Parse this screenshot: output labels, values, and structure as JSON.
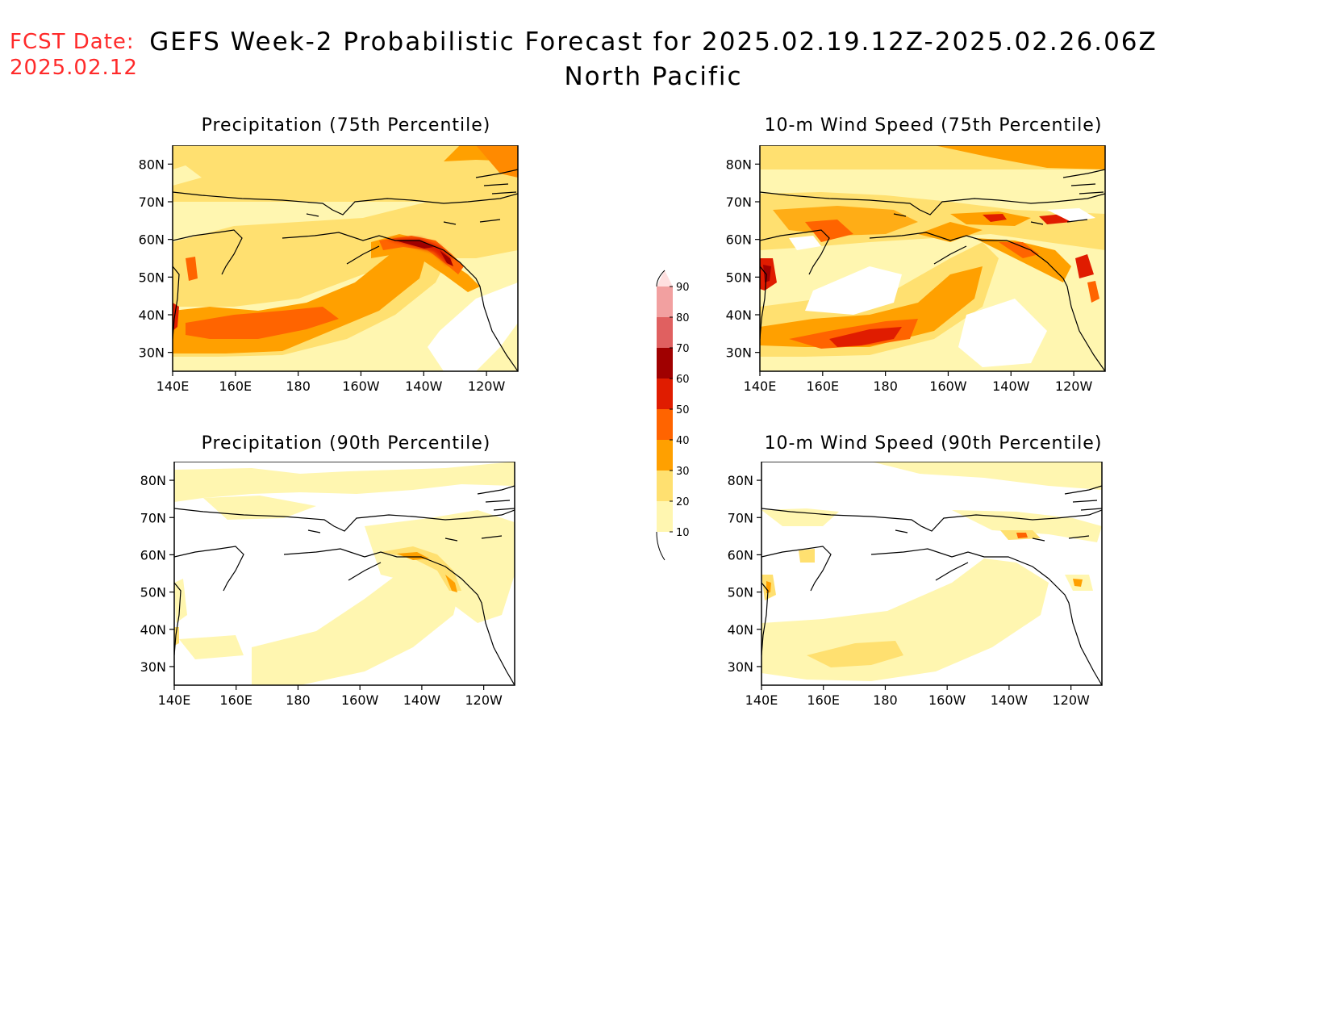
{
  "forecast_date": {
    "label": "FCST Date:",
    "value": "2025.02.12"
  },
  "title": {
    "line1": "GEFS Week-2 Probabilistic Forecast for 2025.02.19.12Z-2025.02.26.06Z",
    "line2": "North Pacific"
  },
  "axes": {
    "lat_labels": [
      "80N",
      "70N",
      "60N",
      "50N",
      "40N",
      "30N"
    ],
    "lon_labels": [
      "140E",
      "160E",
      "180",
      "160W",
      "140W",
      "120W"
    ]
  },
  "panels": [
    {
      "id": "precip75",
      "title": "Precipitation (75th Percentile)"
    },
    {
      "id": "wind75",
      "title": "10-m Wind Speed (75th Percentile)"
    },
    {
      "id": "precip90",
      "title": "Precipitation (90th Percentile)"
    },
    {
      "id": "wind90",
      "title": "10-m Wind Speed (90th Percentile)"
    }
  ],
  "colorbar": {
    "labels": [
      "90",
      "80",
      "70",
      "60",
      "50",
      "40",
      "30",
      "20",
      "10"
    ],
    "colors": [
      "#ffe0e0",
      "#f2a0a0",
      "#e06060",
      "#a00000",
      "#e01c00",
      "#ff6400",
      "#ffa000",
      "#ffe070",
      "#fff6b0"
    ]
  }
}
